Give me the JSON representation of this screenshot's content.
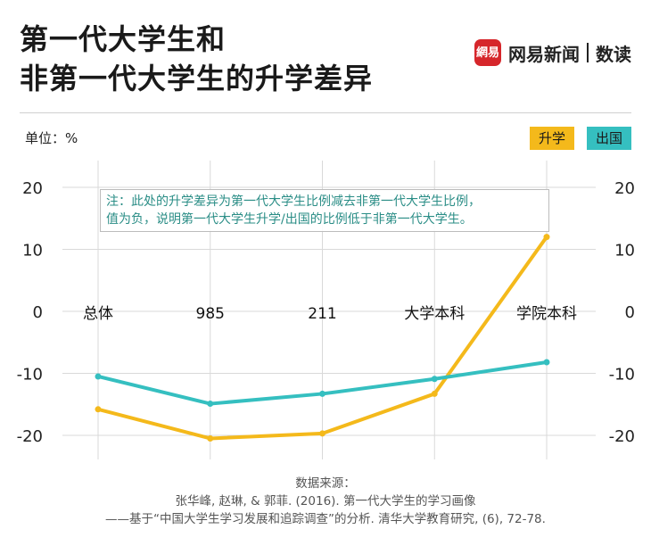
{
  "header": {
    "title_line1": "第一代大学生和",
    "title_line2": "非第一代大学生的升学差异",
    "brand_logo_text": "網易",
    "brand_name": "网易新闻",
    "brand_sub": "数读"
  },
  "unit_label": "单位：%",
  "note": {
    "line1": "注：此处的升学差异为第一代大学生比例减去非第一代大学生比例，",
    "line2": "值为负，说明第一代大学生升学/出国的比例低于非第一代大学生。"
  },
  "source": {
    "line1": "数据来源：",
    "line2": "张华峰, 赵琳, & 郭菲. (2016). 第一代大学生的学习画像",
    "line3": "——基于“中国大学生学习发展和追踪调查”的分析. 清华大学教育研究, (6), 72-78."
  },
  "colors": {
    "series_upgrade": "#f4b91b",
    "series_abroad": "#35bfc0",
    "brand": "#d6262b",
    "grid": "#d9d9d9"
  },
  "chart_data": {
    "type": "line",
    "categories": [
      "总体",
      "985",
      "211",
      "大学本科",
      "学院本科"
    ],
    "series": [
      {
        "name": "升学",
        "values": [
          -15.8,
          -20.5,
          -19.7,
          -13.3,
          12.0
        ]
      },
      {
        "name": "出国",
        "values": [
          -10.5,
          -14.9,
          -13.3,
          -10.9,
          -8.2
        ]
      }
    ],
    "ylim": [
      -20,
      20
    ],
    "yticks": [
      20,
      10,
      0,
      -10,
      -20
    ],
    "grid": true,
    "legend_position": "top-right"
  }
}
